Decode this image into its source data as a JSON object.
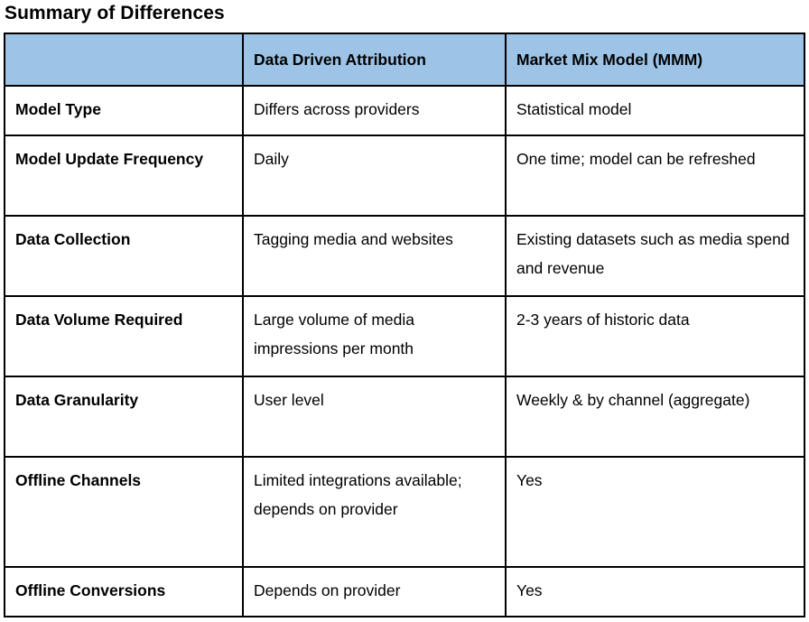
{
  "page_title": "Summary of Differences",
  "colors": {
    "header_bg": "#9DC3E6",
    "border": "#000000",
    "text": "#000000",
    "page_bg": "#FFFFFF"
  },
  "table": {
    "columns": [
      {
        "label": ""
      },
      {
        "label": "Data Driven Attribution"
      },
      {
        "label": "Market Mix Model (MMM)"
      }
    ],
    "rows": [
      {
        "label": "Model Type",
        "dda": "Differs across providers",
        "mmm": "Statistical model"
      },
      {
        "label": "Model Update Frequency",
        "dda": "Daily",
        "mmm": "One time; model can be refreshed"
      },
      {
        "label": "Data Collection",
        "dda": "Tagging media and websites",
        "mmm": "Existing datasets such as media spend and revenue"
      },
      {
        "label": "Data Volume Required",
        "dda": "Large volume of media impressions per month",
        "mmm": "2-3 years of historic data"
      },
      {
        "label": "Data Granularity",
        "dda": "User level",
        "mmm": "Weekly & by channel (aggregate)"
      },
      {
        "label": "Offline Channels",
        "dda": "Limited integrations available; depends on provider",
        "mmm": "Yes"
      },
      {
        "label": "Offline Conversions",
        "dda": "Depends on provider",
        "mmm": "Yes"
      }
    ]
  }
}
